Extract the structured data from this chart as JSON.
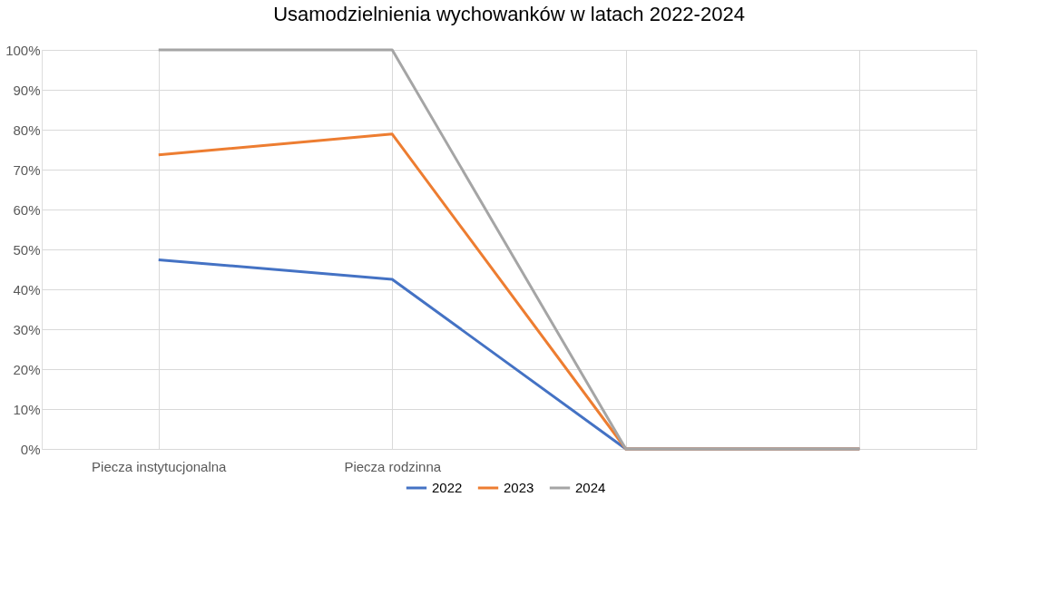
{
  "chart_data": {
    "type": "line",
    "title": "Usamodzielnienia wychowanków w latach 2022-2024",
    "categories": [
      "Piecza instytucjonalna",
      "Piecza rodzinna",
      null,
      null
    ],
    "series": [
      {
        "name": "2022",
        "color": "#4472c4",
        "values": [
          47.4,
          42.5,
          0,
          0
        ]
      },
      {
        "name": "2023",
        "color": "#ed7d31",
        "values": [
          73.7,
          78.9,
          0,
          0
        ]
      },
      {
        "name": "2024",
        "color": "#a5a5a5",
        "values": [
          100,
          100,
          0,
          0
        ]
      }
    ],
    "ylim": [
      0,
      100
    ],
    "yticks": [
      {
        "value": 0,
        "label": "0%"
      },
      {
        "value": 10,
        "label": "10%"
      },
      {
        "value": 20,
        "label": "20%"
      },
      {
        "value": 30,
        "label": "30%"
      },
      {
        "value": 40,
        "label": "40%"
      },
      {
        "value": 50,
        "label": "50%"
      },
      {
        "value": 60,
        "label": "60%"
      },
      {
        "value": 70,
        "label": "70%"
      },
      {
        "value": 80,
        "label": "80%"
      },
      {
        "value": 90,
        "label": "90%"
      },
      {
        "value": 100,
        "label": "100%"
      }
    ],
    "grid": true,
    "legend": "bottom",
    "marker": "none",
    "line_style": "solid"
  }
}
